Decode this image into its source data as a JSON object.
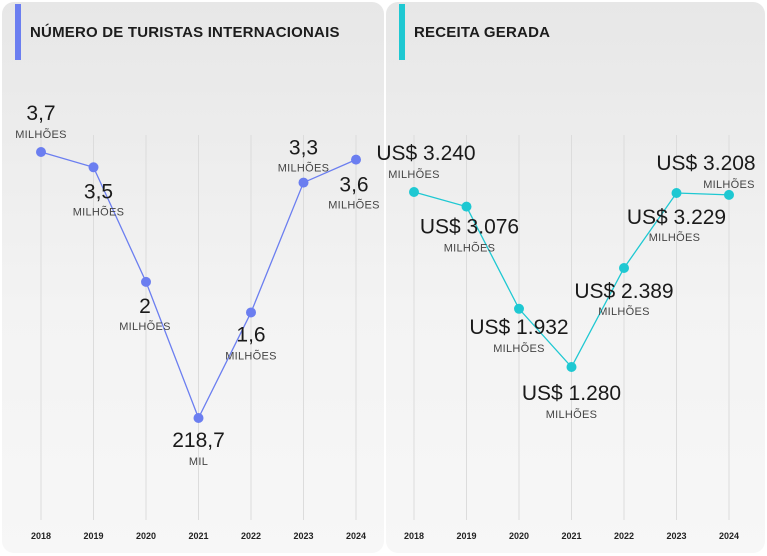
{
  "chart_data": [
    {
      "type": "line",
      "title": "NÚMERO DE TURISTAS INTERNACIONAIS",
      "color": "#6b7ef0",
      "categories": [
        "2018",
        "2019",
        "2020",
        "2021",
        "2022",
        "2023",
        "2024"
      ],
      "values": [
        3.7,
        3.5,
        2,
        0.2187,
        1.6,
        3.3,
        3.6
      ],
      "labels": [
        {
          "value": "3,7",
          "unit": "MILHÕES"
        },
        {
          "value": "3,5",
          "unit": "MILHÕES"
        },
        {
          "value": "2",
          "unit": "MILHÕES"
        },
        {
          "value": "218,7",
          "unit": "MIL"
        },
        {
          "value": "1,6",
          "unit": "MILHÕES"
        },
        {
          "value": "3,3",
          "unit": "MILHÕES"
        },
        {
          "value": "3,6",
          "unit": "MILHÕES"
        }
      ]
    },
    {
      "type": "line",
      "title": "RECEITA GERADA",
      "color": "#1ec8d2",
      "categories": [
        "2018",
        "2019",
        "2020",
        "2021",
        "2022",
        "2023",
        "2024"
      ],
      "values": [
        3240,
        3076,
        1932,
        1280,
        2389,
        3229,
        3208
      ],
      "labels": [
        {
          "value": "US$ 3.240",
          "unit": "MILHÕES"
        },
        {
          "value": "US$ 3.076",
          "unit": "MILHÕES"
        },
        {
          "value": "US$ 1.932",
          "unit": "MILHÕES"
        },
        {
          "value": "US$ 1.280",
          "unit": "MILHÕES"
        },
        {
          "value": "US$ 2.389",
          "unit": "MILHÕES"
        },
        {
          "value": "US$ 3.229",
          "unit": "MILHÕES"
        },
        {
          "value": "US$ 3.208",
          "unit": "MILHÕES"
        }
      ]
    }
  ]
}
